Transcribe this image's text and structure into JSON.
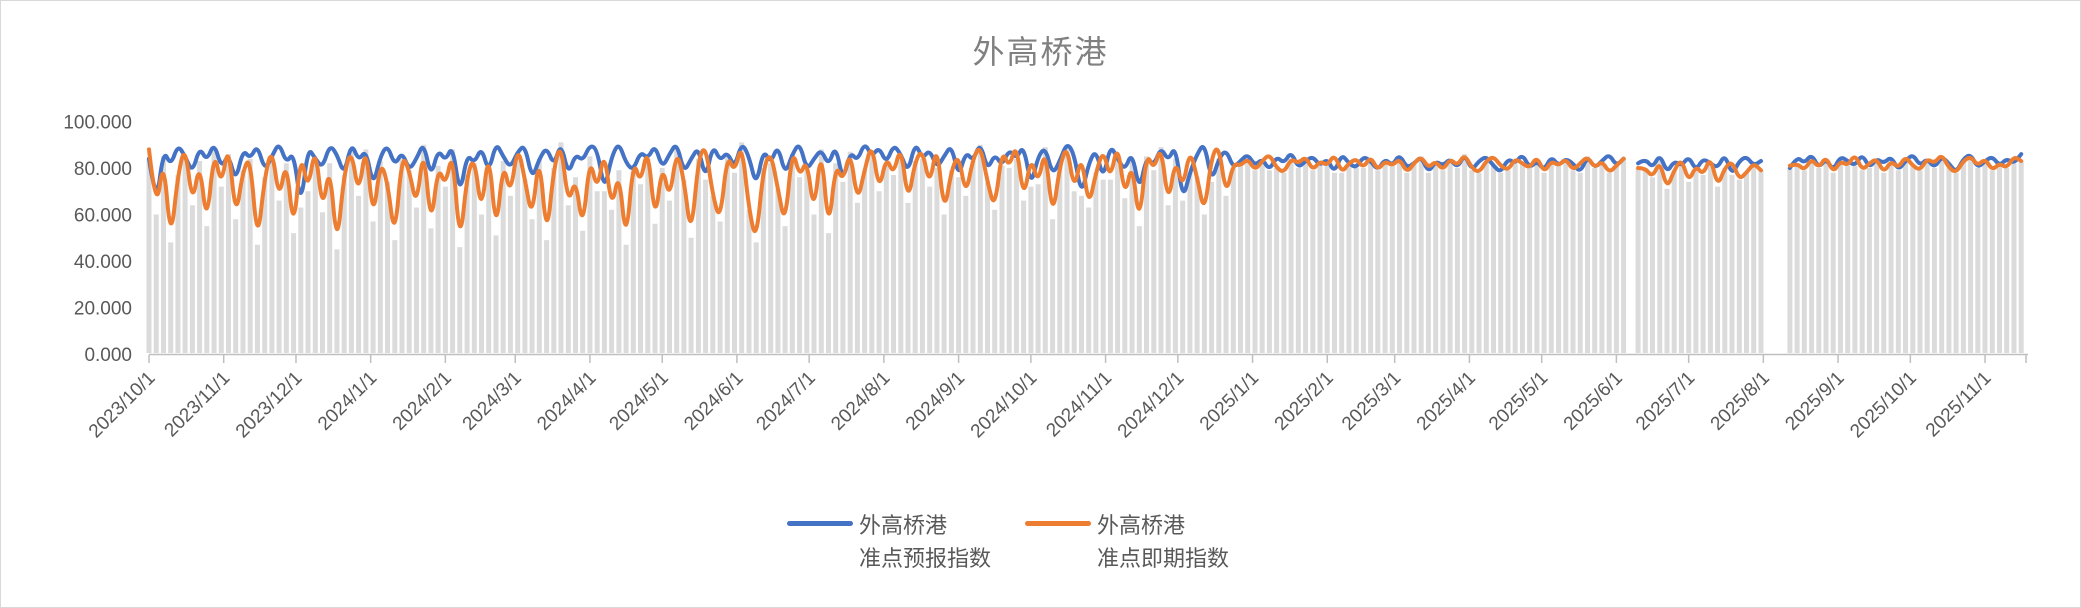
{
  "chart_data": {
    "type": "line",
    "title": "外高桥港",
    "legend_position": "bottom",
    "grid": "off",
    "droplines_color": "#DBDBDB",
    "axis_color": "#BFBFBF",
    "label_color": "#595959",
    "title_color": "#808080",
    "sample_interval_days": 3,
    "x_axis": {
      "start_date": "2023/10/1",
      "end_day_offset": 779,
      "tick_labels": [
        "2023/10/1",
        "2023/11/1",
        "2023/12/1",
        "2024/1/1",
        "2024/2/1",
        "2024/3/1",
        "2024/4/1",
        "2024/5/1",
        "2024/6/1",
        "2024/7/1",
        "2024/8/1",
        "2024/9/1",
        "2024/10/1",
        "2024/11/1",
        "2024/12/1",
        "2025/1/1",
        "2025/2/1",
        "2025/3/1",
        "2025/4/1",
        "2025/5/1",
        "2025/6/1",
        "2025/7/1",
        "2025/8/1",
        "2025/9/1",
        "2025/10/1",
        "2025/11/1"
      ],
      "tick_day_offsets": [
        0,
        31,
        61,
        92,
        123,
        152,
        183,
        213,
        244,
        274,
        305,
        336,
        366,
        397,
        427,
        458,
        489,
        517,
        548,
        578,
        609,
        639,
        670,
        701,
        731,
        762
      ]
    },
    "y_axis": {
      "range": [
        0,
        100
      ],
      "tick_values": [
        0,
        20,
        40,
        60,
        80,
        100
      ],
      "tick_labels": [
        "0.000",
        "20.000",
        "40.000",
        "60.000",
        "80.000",
        "100.000"
      ]
    },
    "series": [
      {
        "name": "外高桥港准点预报指数",
        "name_line1": "外高桥港",
        "name_line2": "准点预报指数",
        "color": "#4472C4",
        "values": [
          84,
          63,
          88,
          81,
          90,
          85,
          78,
          89,
          83,
          91,
          80,
          86,
          74,
          88,
          84,
          90,
          79,
          85,
          91,
          82,
          87,
          63,
          89,
          84,
          80,
          90,
          86,
          77,
          91,
          83,
          88,
          72,
          85,
          90,
          81,
          87,
          79,
          84,
          91,
          76,
          88,
          83,
          90,
          68,
          86,
          82,
          89,
          78,
          91,
          85,
          80,
          87,
          90,
          75,
          84,
          89,
          81,
          91,
          77,
          86,
          83,
          90,
          88,
          70,
          85,
          91,
          82,
          79,
          87,
          84,
          90,
          80,
          86,
          91,
          78,
          84,
          89,
          75,
          90,
          83,
          87,
          80,
          91,
          85,
          72,
          88,
          82,
          90,
          77,
          86,
          91,
          79,
          84,
          88,
          81,
          90,
          74,
          87,
          83,
          91,
          85,
          89,
          82,
          90,
          86,
          78,
          91,
          84,
          88,
          80,
          85,
          90,
          76,
          87,
          83,
          91,
          79,
          86,
          81,
          88,
          84,
          90,
          72,
          85,
          89,
          77,
          83,
          91,
          86,
          68,
          82,
          88,
          75,
          90,
          84,
          79,
          87,
          70,
          85,
          81,
          89,
          83,
          90,
          66,
          78,
          86,
          91,
          74,
          84,
          88,
          80,
          83,
          86,
          81,
          84,
          79,
          85,
          82,
          87,
          80,
          83,
          85,
          81,
          84,
          78,
          86,
          82,
          80,
          85,
          83,
          79,
          84,
          81,
          86,
          80,
          82,
          85,
          78,
          83,
          81,
          84,
          80,
          86,
          79,
          83,
          85,
          81,
          78,
          84,
          82,
          86,
          80,
          83,
          79,
          85,
          81,
          84,
          82,
          78,
          85,
          80,
          83,
          86,
          81,
          84,
          null,
          82,
          84,
          80,
          86,
          78,
          83,
          81,
          85,
          79,
          84,
          82,
          80,
          86,
          77,
          83,
          85,
          81,
          83,
          null,
          null,
          null,
          80,
          85,
          82,
          86,
          80,
          84,
          79,
          85,
          83,
          81,
          86,
          80,
          84,
          82,
          85,
          79,
          83,
          86,
          81,
          84,
          80,
          85,
          82,
          78,
          84,
          86,
          80,
          83,
          85,
          81,
          84,
          82,
          86
        ]
      },
      {
        "name": "外高桥港准点即期指数",
        "name_line1": "外高桥港",
        "name_line2": "准点即期指数",
        "color": "#ED7D31",
        "values": [
          88,
          60,
          85,
          48,
          77,
          90,
          64,
          83,
          55,
          88,
          72,
          91,
          58,
          79,
          85,
          47,
          76,
          89,
          66,
          84,
          52,
          87,
          70,
          90,
          61,
          82,
          45,
          78,
          88,
          68,
          91,
          57,
          83,
          74,
          49,
          86,
          79,
          63,
          90,
          54,
          81,
          72,
          88,
          46,
          77,
          85,
          60,
          89,
          51,
          83,
          68,
          90,
          75,
          58,
          87,
          49,
          80,
          91,
          64,
          76,
          53,
          85,
          70,
          88,
          62,
          79,
          47,
          84,
          73,
          90,
          56,
          82,
          66,
          88,
          75,
          50,
          84,
          90,
          68,
          57,
          86,
          78,
          91,
          62,
          48,
          80,
          87,
          71,
          55,
          89,
          76,
          84,
          60,
          90,
          52,
          82,
          74,
          88,
          65,
          79,
          91,
          70,
          85,
          77,
          90,
          65,
          83,
          88,
          72,
          91,
          60,
          79,
          86,
          68,
          84,
          90,
          74,
          62,
          88,
          80,
          91,
          66,
          85,
          73,
          89,
          58,
          81,
          90,
          70,
          86,
          63,
          78,
          88,
          75,
          91,
          67,
          83,
          55,
          87,
          79,
          90,
          64,
          84,
          71,
          88,
          76,
          60,
          85,
          90,
          68,
          82,
          81,
          84,
          79,
          83,
          86,
          80,
          78,
          84,
          82,
          85,
          79,
          83,
          81,
          86,
          78,
          82,
          84,
          80,
          85,
          79,
          83,
          81,
          84,
          78,
          82,
          85,
          80,
          83,
          79,
          84,
          81,
          86,
          80,
          78,
          83,
          85,
          81,
          79,
          84,
          82,
          80,
          85,
          78,
          83,
          81,
          84,
          79,
          82,
          85,
          80,
          83,
          78,
          81,
          84,
          null,
          80,
          80,
          76,
          83,
          71,
          79,
          84,
          74,
          81,
          77,
          85,
          72,
          80,
          83,
          75,
          78,
          82,
          79,
          null,
          null,
          null,
          81,
          82,
          79,
          84,
          80,
          85,
          78,
          83,
          81,
          86,
          79,
          82,
          84,
          78,
          83,
          80,
          85,
          81,
          79,
          84,
          82,
          86,
          80,
          78,
          83,
          85,
          81,
          84,
          79,
          82,
          80,
          85,
          83
        ]
      }
    ]
  }
}
